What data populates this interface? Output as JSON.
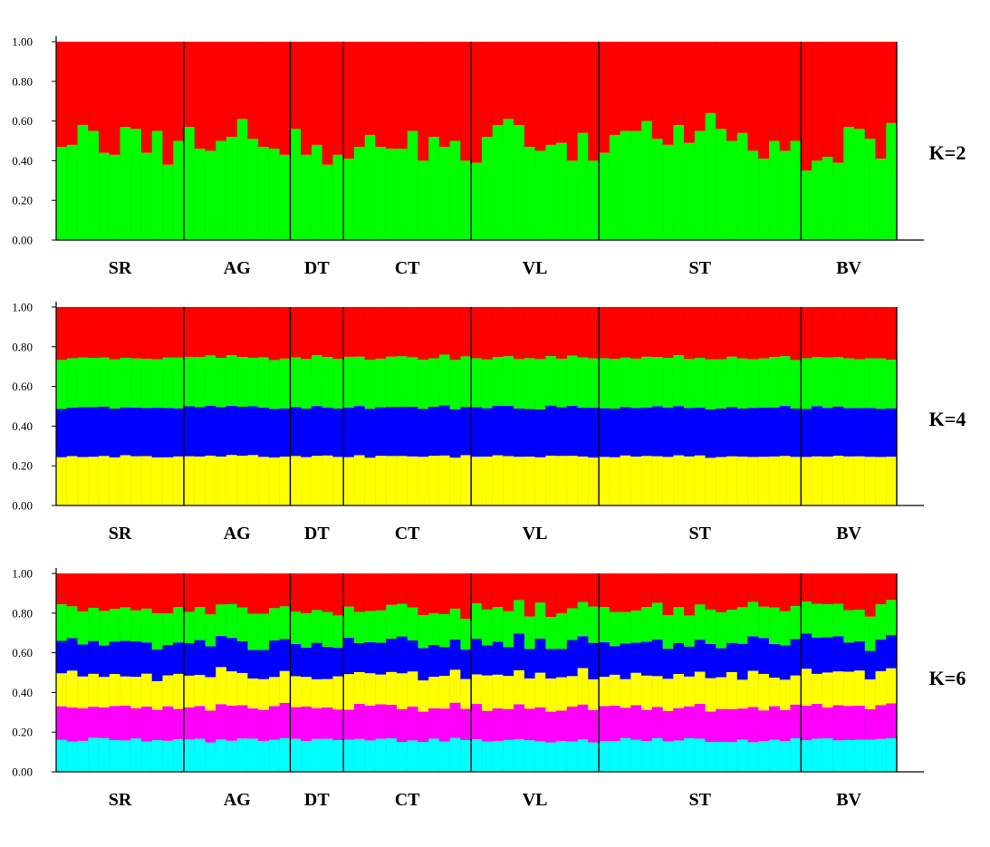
{
  "chart_data": [
    {
      "type": "bar",
      "subtype": "stacked-100",
      "k_label": "K=2",
      "ylim": [
        0,
        1
      ],
      "yticks": [
        "0.00",
        "0.20",
        "0.40",
        "0.60",
        "0.80",
        "1.00"
      ],
      "individual_count": 79,
      "populations": [
        {
          "label": "SR",
          "n": 12
        },
        {
          "label": "AG",
          "n": 10
        },
        {
          "label": "DT",
          "n": 5
        },
        {
          "label": "CT",
          "n": 12
        },
        {
          "label": "VL",
          "n": 12
        },
        {
          "label": "ST",
          "n": 19
        },
        {
          "label": "BV",
          "n": 9
        }
      ],
      "clusters": [
        {
          "color": "#00ff00",
          "values": [
            0.47,
            0.48,
            0.58,
            0.55,
            0.44,
            0.43,
            0.57,
            0.56,
            0.44,
            0.55,
            0.38,
            0.5,
            0.57,
            0.46,
            0.45,
            0.5,
            0.52,
            0.61,
            0.51,
            0.47,
            0.46,
            0.43,
            0.56,
            0.43,
            0.48,
            0.38,
            0.43,
            0.41,
            0.47,
            0.53,
            0.47,
            0.46,
            0.46,
            0.55,
            0.4,
            0.52,
            0.47,
            0.5,
            0.4,
            0.39,
            0.52,
            0.58,
            0.61,
            0.58,
            0.47,
            0.45,
            0.48,
            0.49,
            0.4,
            0.54,
            0.4,
            0.44,
            0.53,
            0.55,
            0.55,
            0.6,
            0.51,
            0.48,
            0.58,
            0.49,
            0.55,
            0.64,
            0.56,
            0.5,
            0.54,
            0.45,
            0.41,
            0.5,
            0.45,
            0.5,
            0.35,
            0.4,
            0.42,
            0.39,
            0.57,
            0.56,
            0.51,
            0.41,
            0.59
          ]
        },
        {
          "color": "#ff0000",
          "values": "remainder"
        }
      ]
    },
    {
      "type": "bar",
      "subtype": "stacked-100",
      "k_label": "K=4",
      "ylim": [
        0,
        1
      ],
      "yticks": [
        "0.00",
        "0.20",
        "0.40",
        "0.60",
        "0.80",
        "1.00"
      ],
      "individual_count": 79,
      "populations": [
        {
          "label": "SR",
          "n": 12
        },
        {
          "label": "AG",
          "n": 10
        },
        {
          "label": "DT",
          "n": 5
        },
        {
          "label": "CT",
          "n": 12
        },
        {
          "label": "VL",
          "n": 12
        },
        {
          "label": "ST",
          "n": 19
        },
        {
          "label": "BV",
          "n": 9
        }
      ],
      "clusters": [
        {
          "color": "#ffff00",
          "base": [
            0.245,
            0.25
          ],
          "wobble": 0.006
        },
        {
          "color": "#0000ff",
          "base": [
            0.245,
            0.25
          ],
          "wobble": 0.006
        },
        {
          "color": "#00ff00",
          "base": [
            0.25,
            0.25
          ],
          "wobble": 0.006
        },
        {
          "color": "#ff0000",
          "values": "remainder"
        }
      ]
    },
    {
      "type": "bar",
      "subtype": "stacked-100",
      "k_label": "K=6",
      "ylim": [
        0,
        1
      ],
      "yticks": [
        "0.00",
        "0.20",
        "0.40",
        "0.60",
        "0.80",
        "1.00"
      ],
      "individual_count": 79,
      "populations": [
        {
          "label": "SR",
          "n": 12
        },
        {
          "label": "AG",
          "n": 10
        },
        {
          "label": "DT",
          "n": 5
        },
        {
          "label": "CT",
          "n": 12
        },
        {
          "label": "VL",
          "n": 12
        },
        {
          "label": "ST",
          "n": 19
        },
        {
          "label": "BV",
          "n": 9
        }
      ],
      "clusters": [
        {
          "color": "#00ffff",
          "base": 0.16,
          "wobble": 0.012
        },
        {
          "color": "#ff00ff",
          "base": 0.165,
          "wobble": 0.014
        },
        {
          "color": "#ffff00",
          "base": 0.165,
          "wobble": 0.022
        },
        {
          "color": "#0000ff",
          "base": 0.165,
          "wobble": 0.022
        },
        {
          "color": "#00ff00",
          "base": 0.17,
          "wobble": 0.015
        },
        {
          "color": "#ff0000",
          "values": "remainder"
        }
      ]
    }
  ]
}
